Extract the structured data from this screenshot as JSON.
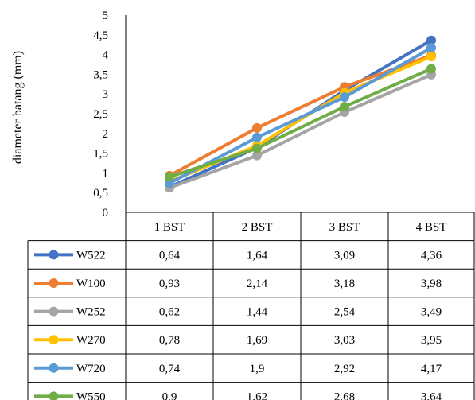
{
  "chart_data": {
    "type": "line",
    "categories": [
      "1 BST",
      "2 BST",
      "3 BST",
      "4 BST"
    ],
    "ylabel": "diameter batang (mm)",
    "xlabel": "",
    "ylim": [
      0,
      5
    ],
    "yticks": [
      "0",
      "0,5",
      "1",
      "1,5",
      "2",
      "2,5",
      "3",
      "3,5",
      "4",
      "4,5",
      "5"
    ],
    "grid": false,
    "legend": "data-table",
    "series": [
      {
        "name": "W522",
        "color": "#4472C4",
        "values": [
          0.64,
          1.64,
          3.09,
          4.36
        ],
        "labels": [
          "0,64",
          "1,64",
          "3,09",
          "4,36"
        ]
      },
      {
        "name": "W100",
        "color": "#ED7D31",
        "values": [
          0.93,
          2.14,
          3.18,
          3.98
        ],
        "labels": [
          "0,93",
          "2,14",
          "3,18",
          "3,98"
        ]
      },
      {
        "name": "W252",
        "color": "#A5A5A5",
        "values": [
          0.62,
          1.44,
          2.54,
          3.49
        ],
        "labels": [
          "0,62",
          "1,44",
          "2,54",
          "3,49"
        ]
      },
      {
        "name": "W270",
        "color": "#FFC000",
        "values": [
          0.78,
          1.69,
          3.03,
          3.95
        ],
        "labels": [
          "0,78",
          "1,69",
          "3,03",
          "3,95"
        ]
      },
      {
        "name": "W720",
        "color": "#5B9BD5",
        "values": [
          0.74,
          1.9,
          2.92,
          4.17
        ],
        "labels": [
          "0,74",
          "1,9",
          "2,92",
          "4,17"
        ]
      },
      {
        "name": "W550",
        "color": "#70AD47",
        "values": [
          0.9,
          1.62,
          2.68,
          3.64
        ],
        "labels": [
          "0,9",
          "1,62",
          "2,68",
          "3,64"
        ]
      }
    ]
  }
}
